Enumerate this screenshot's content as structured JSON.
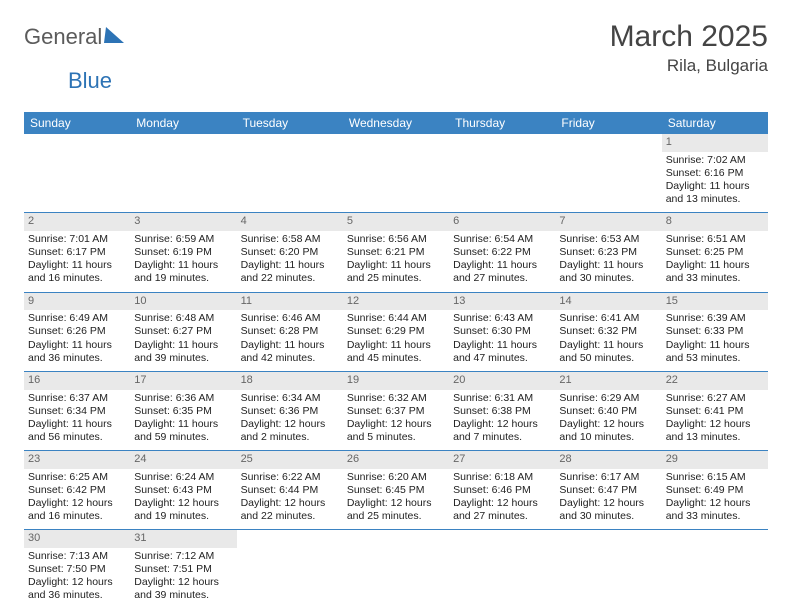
{
  "logo": {
    "word1": "General",
    "word2": "Blue"
  },
  "title": "March 2025",
  "location": "Rila, Bulgaria",
  "weekday_color": "#3b83c2",
  "border_color": "#3b83c2",
  "daynum_bg": "#e9e9e9",
  "weekdays": [
    "Sunday",
    "Monday",
    "Tuesday",
    "Wednesday",
    "Thursday",
    "Friday",
    "Saturday"
  ],
  "weeks": [
    [
      null,
      null,
      null,
      null,
      null,
      null,
      {
        "n": "1",
        "sunrise": "Sunrise: 7:02 AM",
        "sunset": "Sunset: 6:16 PM",
        "daylight": "Daylight: 11 hours and 13 minutes."
      }
    ],
    [
      {
        "n": "2",
        "sunrise": "Sunrise: 7:01 AM",
        "sunset": "Sunset: 6:17 PM",
        "daylight": "Daylight: 11 hours and 16 minutes."
      },
      {
        "n": "3",
        "sunrise": "Sunrise: 6:59 AM",
        "sunset": "Sunset: 6:19 PM",
        "daylight": "Daylight: 11 hours and 19 minutes."
      },
      {
        "n": "4",
        "sunrise": "Sunrise: 6:58 AM",
        "sunset": "Sunset: 6:20 PM",
        "daylight": "Daylight: 11 hours and 22 minutes."
      },
      {
        "n": "5",
        "sunrise": "Sunrise: 6:56 AM",
        "sunset": "Sunset: 6:21 PM",
        "daylight": "Daylight: 11 hours and 25 minutes."
      },
      {
        "n": "6",
        "sunrise": "Sunrise: 6:54 AM",
        "sunset": "Sunset: 6:22 PM",
        "daylight": "Daylight: 11 hours and 27 minutes."
      },
      {
        "n": "7",
        "sunrise": "Sunrise: 6:53 AM",
        "sunset": "Sunset: 6:23 PM",
        "daylight": "Daylight: 11 hours and 30 minutes."
      },
      {
        "n": "8",
        "sunrise": "Sunrise: 6:51 AM",
        "sunset": "Sunset: 6:25 PM",
        "daylight": "Daylight: 11 hours and 33 minutes."
      }
    ],
    [
      {
        "n": "9",
        "sunrise": "Sunrise: 6:49 AM",
        "sunset": "Sunset: 6:26 PM",
        "daylight": "Daylight: 11 hours and 36 minutes."
      },
      {
        "n": "10",
        "sunrise": "Sunrise: 6:48 AM",
        "sunset": "Sunset: 6:27 PM",
        "daylight": "Daylight: 11 hours and 39 minutes."
      },
      {
        "n": "11",
        "sunrise": "Sunrise: 6:46 AM",
        "sunset": "Sunset: 6:28 PM",
        "daylight": "Daylight: 11 hours and 42 minutes."
      },
      {
        "n": "12",
        "sunrise": "Sunrise: 6:44 AM",
        "sunset": "Sunset: 6:29 PM",
        "daylight": "Daylight: 11 hours and 45 minutes."
      },
      {
        "n": "13",
        "sunrise": "Sunrise: 6:43 AM",
        "sunset": "Sunset: 6:30 PM",
        "daylight": "Daylight: 11 hours and 47 minutes."
      },
      {
        "n": "14",
        "sunrise": "Sunrise: 6:41 AM",
        "sunset": "Sunset: 6:32 PM",
        "daylight": "Daylight: 11 hours and 50 minutes."
      },
      {
        "n": "15",
        "sunrise": "Sunrise: 6:39 AM",
        "sunset": "Sunset: 6:33 PM",
        "daylight": "Daylight: 11 hours and 53 minutes."
      }
    ],
    [
      {
        "n": "16",
        "sunrise": "Sunrise: 6:37 AM",
        "sunset": "Sunset: 6:34 PM",
        "daylight": "Daylight: 11 hours and 56 minutes."
      },
      {
        "n": "17",
        "sunrise": "Sunrise: 6:36 AM",
        "sunset": "Sunset: 6:35 PM",
        "daylight": "Daylight: 11 hours and 59 minutes."
      },
      {
        "n": "18",
        "sunrise": "Sunrise: 6:34 AM",
        "sunset": "Sunset: 6:36 PM",
        "daylight": "Daylight: 12 hours and 2 minutes."
      },
      {
        "n": "19",
        "sunrise": "Sunrise: 6:32 AM",
        "sunset": "Sunset: 6:37 PM",
        "daylight": "Daylight: 12 hours and 5 minutes."
      },
      {
        "n": "20",
        "sunrise": "Sunrise: 6:31 AM",
        "sunset": "Sunset: 6:38 PM",
        "daylight": "Daylight: 12 hours and 7 minutes."
      },
      {
        "n": "21",
        "sunrise": "Sunrise: 6:29 AM",
        "sunset": "Sunset: 6:40 PM",
        "daylight": "Daylight: 12 hours and 10 minutes."
      },
      {
        "n": "22",
        "sunrise": "Sunrise: 6:27 AM",
        "sunset": "Sunset: 6:41 PM",
        "daylight": "Daylight: 12 hours and 13 minutes."
      }
    ],
    [
      {
        "n": "23",
        "sunrise": "Sunrise: 6:25 AM",
        "sunset": "Sunset: 6:42 PM",
        "daylight": "Daylight: 12 hours and 16 minutes."
      },
      {
        "n": "24",
        "sunrise": "Sunrise: 6:24 AM",
        "sunset": "Sunset: 6:43 PM",
        "daylight": "Daylight: 12 hours and 19 minutes."
      },
      {
        "n": "25",
        "sunrise": "Sunrise: 6:22 AM",
        "sunset": "Sunset: 6:44 PM",
        "daylight": "Daylight: 12 hours and 22 minutes."
      },
      {
        "n": "26",
        "sunrise": "Sunrise: 6:20 AM",
        "sunset": "Sunset: 6:45 PM",
        "daylight": "Daylight: 12 hours and 25 minutes."
      },
      {
        "n": "27",
        "sunrise": "Sunrise: 6:18 AM",
        "sunset": "Sunset: 6:46 PM",
        "daylight": "Daylight: 12 hours and 27 minutes."
      },
      {
        "n": "28",
        "sunrise": "Sunrise: 6:17 AM",
        "sunset": "Sunset: 6:47 PM",
        "daylight": "Daylight: 12 hours and 30 minutes."
      },
      {
        "n": "29",
        "sunrise": "Sunrise: 6:15 AM",
        "sunset": "Sunset: 6:49 PM",
        "daylight": "Daylight: 12 hours and 33 minutes."
      }
    ],
    [
      {
        "n": "30",
        "sunrise": "Sunrise: 7:13 AM",
        "sunset": "Sunset: 7:50 PM",
        "daylight": "Daylight: 12 hours and 36 minutes."
      },
      {
        "n": "31",
        "sunrise": "Sunrise: 7:12 AM",
        "sunset": "Sunset: 7:51 PM",
        "daylight": "Daylight: 12 hours and 39 minutes."
      },
      null,
      null,
      null,
      null,
      null
    ]
  ]
}
